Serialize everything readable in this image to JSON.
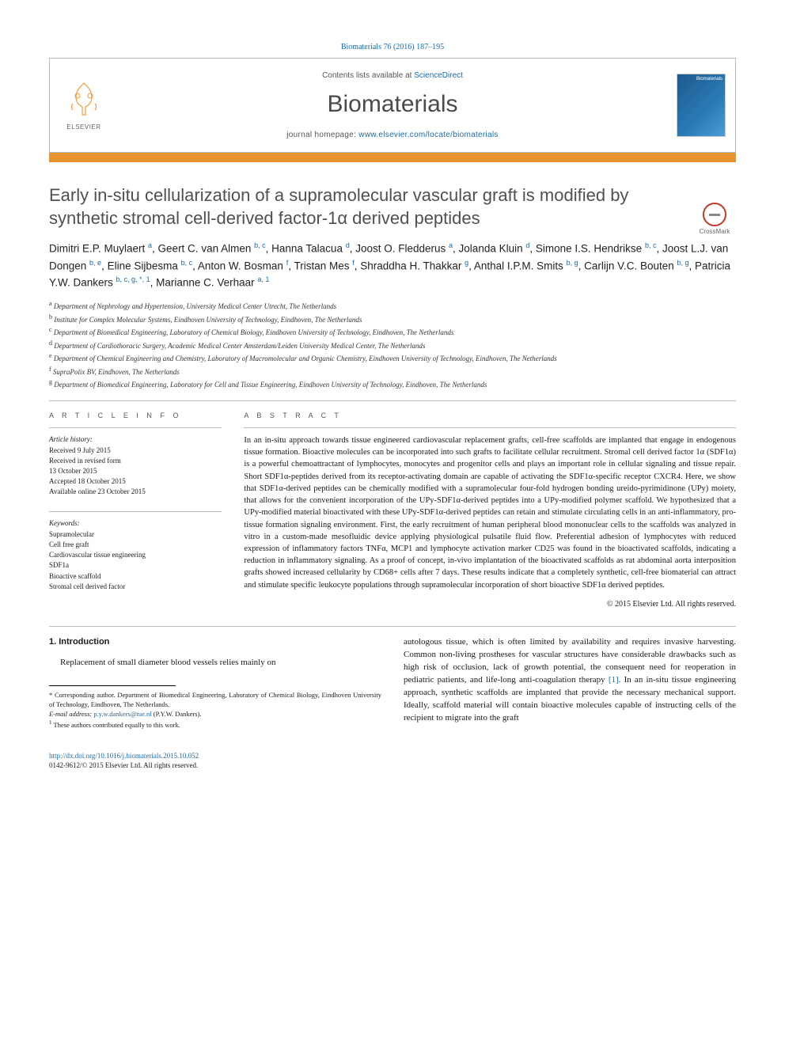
{
  "citation": "Biomaterials 76 (2016) 187–195",
  "header": {
    "contents_prefix": "Contents lists available at ",
    "contents_link": "ScienceDirect",
    "journal_name": "Biomaterials",
    "homepage_prefix": "journal homepage: ",
    "homepage_url": "www.elsevier.com/locate/biomaterials",
    "publisher": "ELSEVIER",
    "cover_label": "Biomaterials"
  },
  "crossmark_label": "CrossMark",
  "title": "Early in-situ cellularization of a supramolecular vascular graft is modified by synthetic stromal cell-derived factor-1α derived peptides",
  "authors_html": "Dimitri E.P. Muylaert <sup>a</sup>, Geert C. van Almen <sup>b, c</sup>, Hanna Talacua <sup>d</sup>, Joost O. Fledderus <sup>a</sup>, Jolanda Kluin <sup>d</sup>, Simone I.S. Hendrikse <sup>b, c</sup>, Joost L.J. van Dongen <sup>b, e</sup>, Eline Sijbesma <sup>b, c</sup>, Anton W. Bosman <sup>f</sup>, Tristan Mes <sup>f</sup>, Shraddha H. Thakkar <sup>g</sup>, Anthal I.P.M. Smits <sup>b, g</sup>, Carlijn V.C. Bouten <sup>b, g</sup>, Patricia Y.W. Dankers <sup>b, c, g, *, 1</sup>, Marianne C. Verhaar <sup>a, 1</sup>",
  "affiliations": [
    {
      "key": "a",
      "text": "Department of Nephrology and Hypertension, University Medical Center Utrecht, The Netherlands"
    },
    {
      "key": "b",
      "text": "Institute for Complex Molecular Systems, Eindhoven University of Technology, Eindhoven, The Netherlands"
    },
    {
      "key": "c",
      "text": "Department of Biomedical Engineering, Laboratory of Chemical Biology, Eindhoven University of Technology, Eindhoven, The Netherlands"
    },
    {
      "key": "d",
      "text": "Department of Cardiothoracic Surgery, Academic Medical Center Amsterdam/Leiden University Medical Center, The Netherlands"
    },
    {
      "key": "e",
      "text": "Department of Chemical Engineering and Chemistry, Laboratory of Macromolecular and Organic Chemistry, Eindhoven University of Technology, Eindhoven, The Netherlands"
    },
    {
      "key": "f",
      "text": "SupraPolix BV, Eindhoven, The Netherlands"
    },
    {
      "key": "g",
      "text": "Department of Biomedical Engineering, Laboratory for Cell and Tissue Engineering, Eindhoven University of Technology, Eindhoven, The Netherlands"
    }
  ],
  "article_info": {
    "label": "A R T I C L E  I N F O",
    "history_title": "Article history:",
    "history": [
      "Received 9 July 2015",
      "Received in revised form",
      "13 October 2015",
      "Accepted 18 October 2015",
      "Available online 23 October 2015"
    ],
    "keywords_title": "Keywords:",
    "keywords": [
      "Supramolecular",
      "Cell free graft",
      "Cardiovascular tissue engineering",
      "SDF1a",
      "Bioactive scaffold",
      "Stromal cell derived factor"
    ]
  },
  "abstract": {
    "label": "A B S T R A C T",
    "text": "In an in-situ approach towards tissue engineered cardiovascular replacement grafts, cell-free scaffolds are implanted that engage in endogenous tissue formation. Bioactive molecules can be incorporated into such grafts to facilitate cellular recruitment. Stromal cell derived factor 1α (SDF1α) is a powerful chemoattractant of lymphocytes, monocytes and progenitor cells and plays an important role in cellular signaling and tissue repair. Short SDF1α-peptides derived from its receptor-activating domain are capable of activating the SDF1α-specific receptor CXCR4. Here, we show that SDF1α-derived peptides can be chemically modified with a supramolecular four-fold hydrogen bonding ureido-pyrimidinone (UPy) moiety, that allows for the convenient incorporation of the UPy-SDF1α-derived peptides into a UPy-modified polymer scaffold. We hypothesized that a UPy-modified material bioactivated with these UPy-SDF1α-derived peptides can retain and stimulate circulating cells in an anti-inflammatory, pro-tissue formation signaling environment. First, the early recruitment of human peripheral blood mononuclear cells to the scaffolds was analyzed in vitro in a custom-made mesofluidic device applying physiological pulsatile fluid flow. Preferential adhesion of lymphocytes with reduced expression of inflammatory factors TNFα, MCP1 and lymphocyte activation marker CD25 was found in the bioactivated scaffolds, indicating a reduction in inflammatory signaling. As a proof of concept, in-vivo implantation of the bioactivated scaffolds as rat abdominal aorta interposition grafts showed increased cellularity by CD68+ cells after 7 days. These results indicate that a completely synthetic, cell-free biomaterial can attract and stimulate specific leukocyte populations through supramolecular incorporation of short bioactive SDF1α derived peptides.",
    "copyright": "© 2015 Elsevier Ltd. All rights reserved."
  },
  "body": {
    "heading": "1. Introduction",
    "col1_para": "Replacement of small diameter blood vessels relies mainly on",
    "col2_para": "autologous tissue, which is often limited by availability and requires invasive harvesting. Common non-living prostheses for vascular structures have considerable drawbacks such as high risk of occlusion, lack of growth potential, the consequent need for reoperation in pediatric patients, and life-long anti-coagulation therapy [1]. In an in-situ tissue engineering approach, synthetic scaffolds are implanted that provide the necessary mechanical support. Ideally, scaffold material will contain bioactive molecules capable of instructing cells of the recipient to migrate into the graft",
    "ref1": "[1]"
  },
  "footnotes": {
    "corresponding": "* Corresponding author. Department of Biomedical Engineering, Laboratory of Chemical Biology, Eindhoven University of Technology, Eindhoven, The Netherlands.",
    "email_label": "E-mail address: ",
    "email": "p.y.w.dankers@tue.nl",
    "email_suffix": " (P.Y.W. Dankers).",
    "equal": "These authors contributed equally to this work.",
    "equal_marker": "1"
  },
  "footer": {
    "doi": "http://dx.doi.org/10.1016/j.biomaterials.2015.10.052",
    "issn_copyright": "0142-9612/© 2015 Elsevier Ltd. All rights reserved."
  },
  "colors": {
    "accent_orange": "#e8942e",
    "link_blue": "#1a6ca8",
    "title_gray": "#505050"
  }
}
